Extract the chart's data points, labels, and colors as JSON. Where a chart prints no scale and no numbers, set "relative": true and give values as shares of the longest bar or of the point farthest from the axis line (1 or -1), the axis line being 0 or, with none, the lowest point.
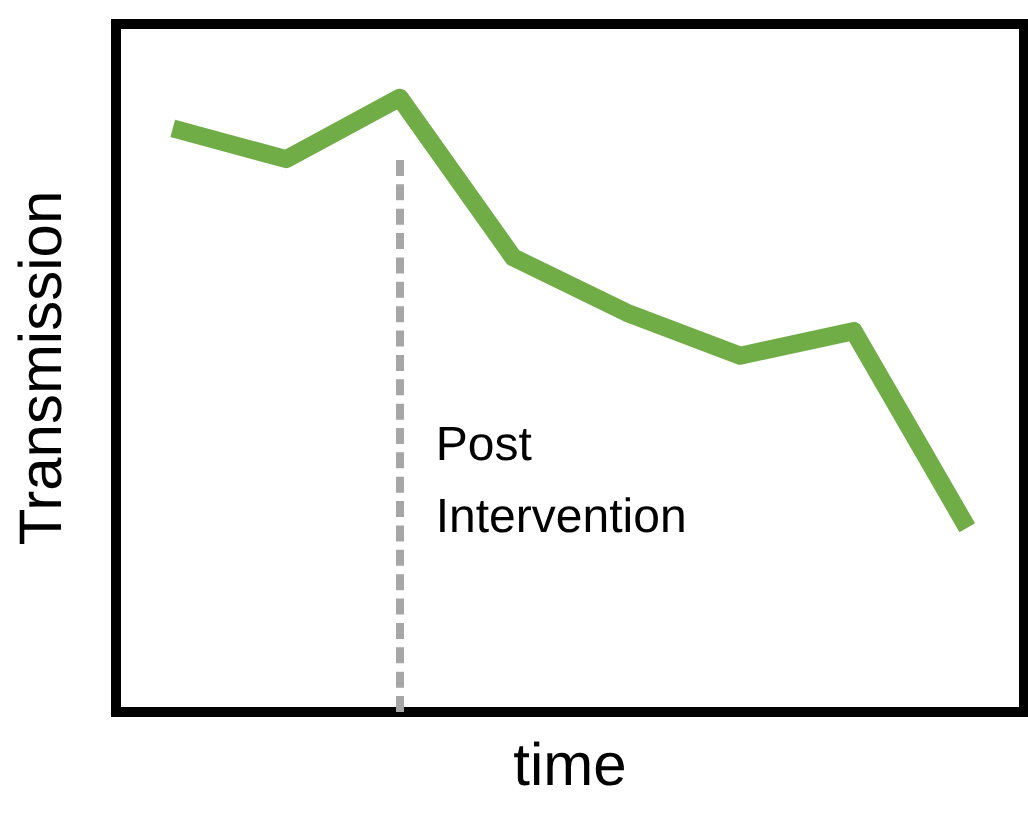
{
  "chart_data": {
    "type": "line",
    "xlabel": "time",
    "ylabel": "Transmission",
    "relative": true,
    "categories": [
      null,
      null,
      null,
      null,
      null,
      null,
      null,
      null
    ],
    "series": [
      {
        "color": "#70ad47",
        "values": [
          0.95,
          0.9,
          1,
          0.74,
          0.65,
          0.58,
          0.62,
          0.3
        ]
      }
    ],
    "annotations": [
      "Post Intervention"
    ],
    "marker": "none",
    "line_style": "solid",
    "grid": false,
    "legend": false,
    "tick_labels": false
  }
}
